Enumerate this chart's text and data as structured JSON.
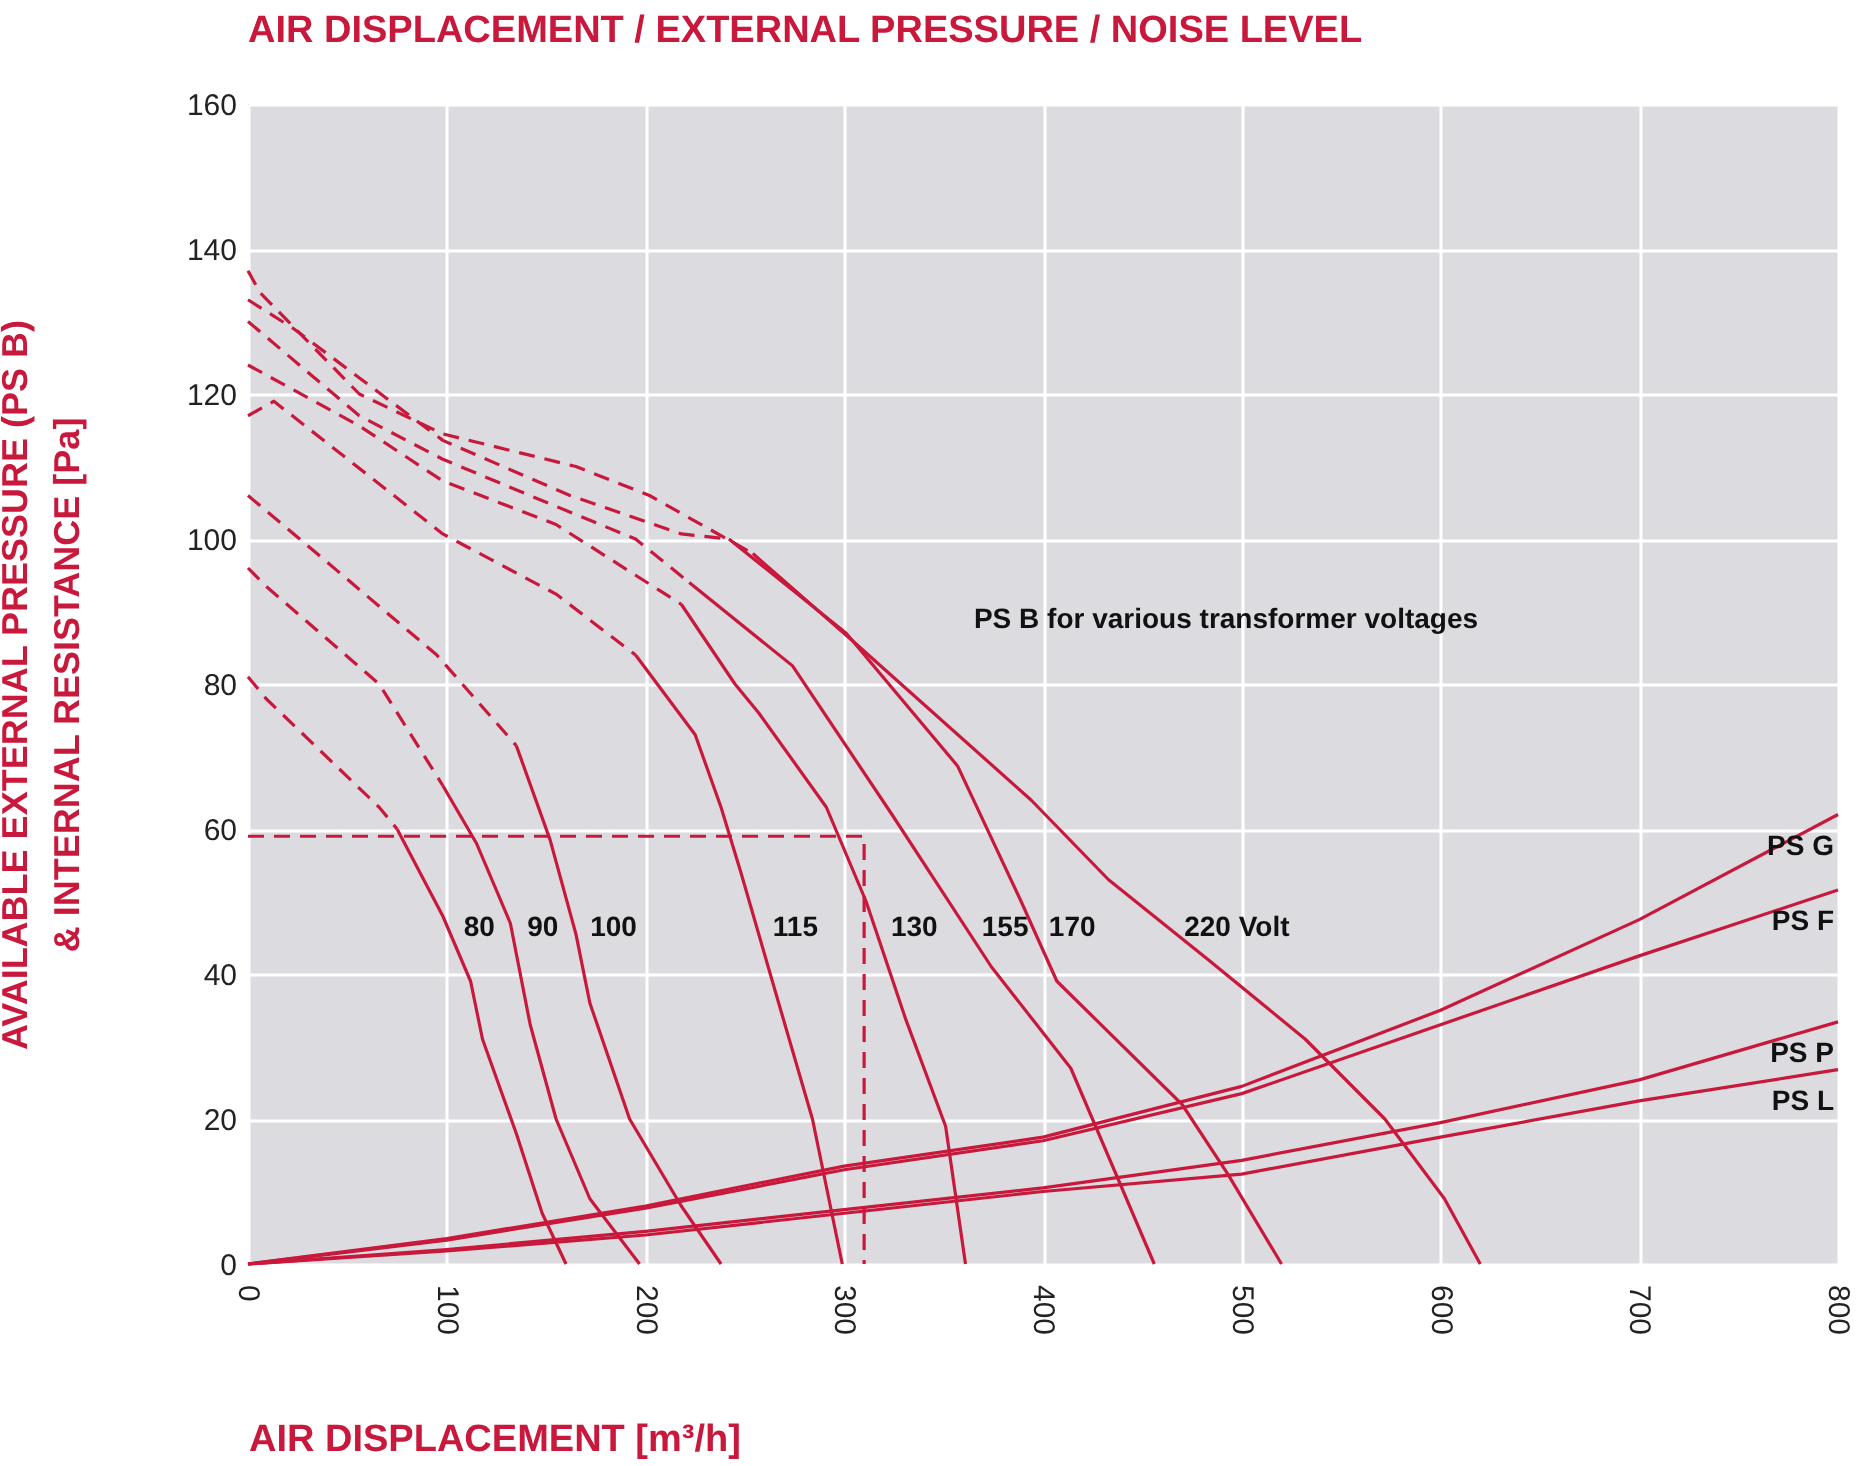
{
  "chart_data": {
    "type": "line",
    "title": "AIR DISPLACEMENT / EXTERNAL PRESSURE / NOISE LEVEL",
    "xlabel": "AIR DISPLACEMENT [m³/h]",
    "ylabel": "AVAILABLE EXTERNAL PRESSURE (PS B)\n& INTERNAL RESISTANCE [Pa]",
    "xlim": [
      0,
      800
    ],
    "ylim": [
      0,
      160
    ],
    "xticks": [
      0,
      100,
      200,
      300,
      400,
      500,
      600,
      700,
      800
    ],
    "yticks": [
      0,
      20,
      40,
      60,
      80,
      100,
      120,
      140,
      160
    ],
    "grid": true,
    "marker": "none",
    "series": [
      {
        "color": "#c8193c",
        "line_style": "dashed",
        "x": [
          0,
          9,
          66,
          75
        ],
        "values": [
          81,
          78,
          63,
          60
        ]
      },
      {
        "name": "80",
        "color": "#c8193c",
        "line_style": "solid",
        "x": [
          75,
          98,
          112,
          118,
          135,
          148,
          160
        ],
        "values": [
          60,
          48,
          39,
          31,
          18,
          7,
          0
        ]
      },
      {
        "color": "#c8193c",
        "line_style": "dashed",
        "x": [
          0,
          9,
          66,
          98
        ],
        "values": [
          96,
          93.5,
          80,
          66
        ]
      },
      {
        "name": "90",
        "color": "#c8193c",
        "line_style": "solid",
        "x": [
          98,
          115,
          132,
          142,
          155,
          172,
          197
        ],
        "values": [
          66,
          58,
          47,
          33,
          20,
          9,
          0
        ]
      },
      {
        "color": "#c8193c",
        "line_style": "dashed",
        "x": [
          0,
          23,
          95,
          135
        ],
        "values": [
          106,
          100.7,
          84,
          71.5
        ]
      },
      {
        "name": "100",
        "color": "#c8193c",
        "line_style": "solid",
        "x": [
          135,
          152,
          165,
          172,
          192,
          218,
          238
        ],
        "values": [
          71.5,
          58.5,
          45.5,
          36,
          20,
          8,
          0
        ]
      },
      {
        "color": "#c8193c",
        "line_style": "dashed",
        "x": [
          0,
          13,
          98,
          155,
          195
        ],
        "values": [
          117,
          119,
          100.7,
          92.4,
          84
        ]
      },
      {
        "name": "115",
        "color": "#c8193c",
        "line_style": "solid",
        "x": [
          195,
          225,
          238,
          248,
          267,
          284,
          299
        ],
        "values": [
          84,
          73,
          63,
          54,
          36,
          20,
          0
        ]
      },
      {
        "color": "#c8193c",
        "line_style": "dashed",
        "x": [
          0,
          56,
          98,
          155,
          195,
          218
        ],
        "values": [
          124,
          115.6,
          108,
          102,
          95,
          91
        ]
      },
      {
        "name": "130",
        "color": "#c8193c",
        "line_style": "solid",
        "x": [
          218,
          245,
          257,
          291,
          311,
          331,
          351,
          361
        ],
        "values": [
          91,
          80,
          76,
          63,
          50,
          33.7,
          19,
          0
        ]
      },
      {
        "color": "#c8193c",
        "line_style": "dashed",
        "x": [
          0,
          56,
          98,
          155,
          195,
          222
        ],
        "values": [
          130,
          117,
          111,
          104.5,
          100,
          94
        ]
      },
      {
        "name": "155",
        "color": "#c8193c",
        "line_style": "solid",
        "x": [
          222,
          274,
          324,
          374,
          414,
          456
        ],
        "values": [
          94,
          82.5,
          62,
          41,
          27,
          0
        ]
      },
      {
        "color": "#c8193c",
        "line_style": "dashed",
        "x": [
          0,
          23,
          98,
          162,
          218,
          242
        ],
        "values": [
          133,
          129,
          113.6,
          106,
          100.7,
          100
        ]
      },
      {
        "name": "170",
        "color": "#c8193c",
        "line_style": "solid",
        "x": [
          242,
          301,
          357,
          389,
          407,
          470,
          493,
          520
        ],
        "values": [
          100,
          87,
          68.7,
          50,
          39,
          22,
          12.4,
          0
        ]
      },
      {
        "color": "#c8193c",
        "line_style": "dashed",
        "x": [
          0,
          6,
          56,
          98,
          165,
          202,
          254
        ],
        "values": [
          137,
          134,
          120,
          114.5,
          110,
          106,
          98
        ]
      },
      {
        "name": "220 Volt",
        "color": "#c8193c",
        "line_style": "solid",
        "x": [
          254,
          304,
          394,
          433,
          483,
          532,
          572,
          602,
          620
        ],
        "values": [
          98,
          86,
          64,
          53,
          42,
          31,
          20,
          9,
          0
        ]
      },
      {
        "name": "PS G",
        "color": "#c8193c",
        "line_style": "solid",
        "x": [
          0,
          100,
          200,
          300,
          400,
          500,
          600,
          700,
          800
        ],
        "values": [
          0,
          3.5,
          8,
          13.5,
          17.5,
          24.5,
          35,
          47.5,
          62
        ]
      },
      {
        "name": "PS F",
        "color": "#c8193c",
        "line_style": "solid",
        "x": [
          0,
          100,
          200,
          300,
          400,
          500,
          600,
          700,
          800
        ],
        "values": [
          0,
          3.3,
          7.7,
          13,
          17,
          23.5,
          33,
          42.5,
          51.6
        ]
      },
      {
        "name": "PS P",
        "color": "#c8193c",
        "line_style": "solid",
        "x": [
          0,
          100,
          200,
          300,
          400,
          500,
          600,
          700,
          800
        ],
        "values": [
          0,
          2,
          4.5,
          7.5,
          10.5,
          14.3,
          19.5,
          25.4,
          33.4
        ]
      },
      {
        "name": "PS L",
        "color": "#c8193c",
        "line_style": "solid",
        "x": [
          0,
          100,
          200,
          300,
          400,
          500,
          600,
          700,
          800
        ],
        "values": [
          0,
          1.8,
          4,
          7,
          10,
          12.4,
          17.5,
          22.5,
          26.8
        ]
      },
      {
        "color": "#c8193c",
        "line_style": "dashed",
        "x": [
          0,
          310,
          310
        ],
        "values": [
          59,
          59,
          0
        ]
      }
    ],
    "annotations": [
      "PS B for various transformer voltages"
    ]
  }
}
